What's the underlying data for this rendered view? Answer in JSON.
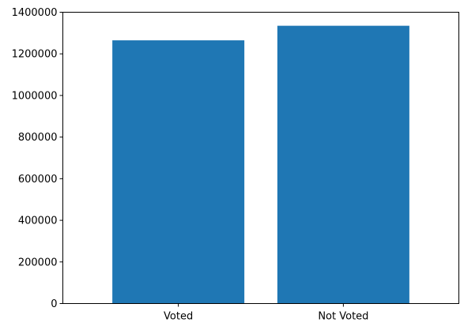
{
  "chart_data": {
    "type": "bar",
    "categories": [
      "Voted",
      "Not Voted"
    ],
    "values": [
      1265000,
      1335000
    ],
    "ylim": [
      0,
      1400000
    ],
    "yticks": [
      0,
      200000,
      400000,
      600000,
      800000,
      1000000,
      1200000,
      1400000
    ],
    "ytick_labels": [
      "0",
      "200000",
      "400000",
      "600000",
      "800000",
      "1000000",
      "1200000",
      "1400000"
    ],
    "title": "",
    "xlabel": "",
    "ylabel": "",
    "grid": false,
    "bar_color": "#1f77b4"
  }
}
